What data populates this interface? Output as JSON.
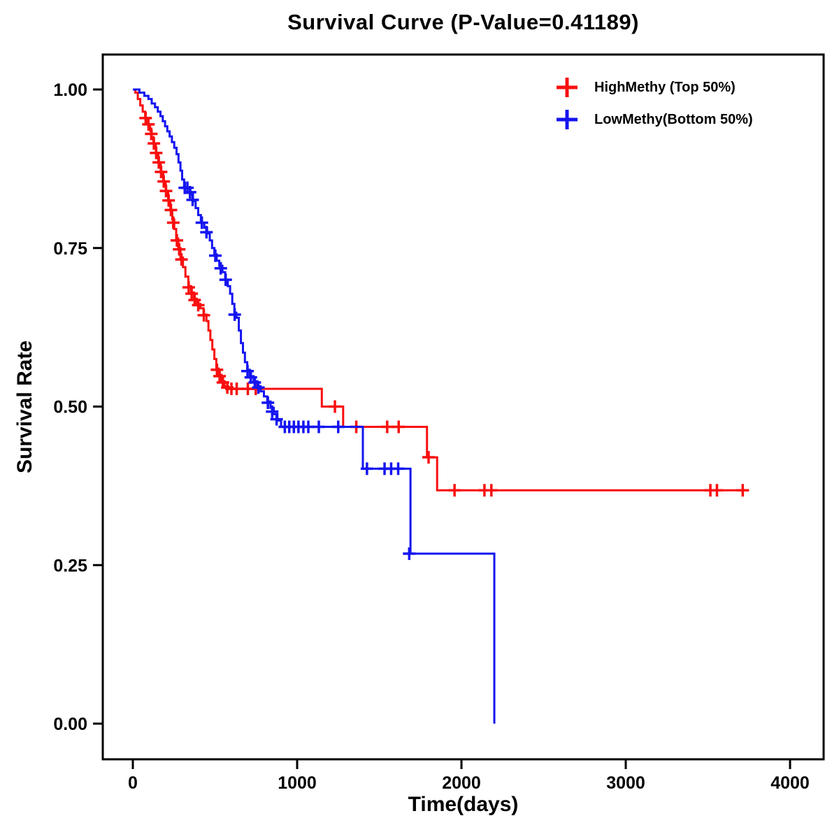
{
  "title": "Survival Curve (P-Value=0.41189)",
  "p_value": "0.41189",
  "chart_data": {
    "type": "line",
    "subtype": "kaplan-meier-step",
    "title": "Survival Curve (P-Value=0.41189)",
    "xlabel": "Time(days)",
    "ylabel": "Survival Rate",
    "xlim": [
      0,
      4000
    ],
    "ylim": [
      0.0,
      1.0
    ],
    "grid": false,
    "legend_position": "top-right-inside",
    "xticks": [
      {
        "v": 0,
        "label": "0"
      },
      {
        "v": 1000,
        "label": "1000"
      },
      {
        "v": 2000,
        "label": "2000"
      },
      {
        "v": 3000,
        "label": "3000"
      },
      {
        "v": 4000,
        "label": "4000"
      }
    ],
    "yticks": [
      {
        "v": 0.0,
        "label": "0.00"
      },
      {
        "v": 0.25,
        "label": "0.25"
      },
      {
        "v": 0.5,
        "label": "0.50"
      },
      {
        "v": 0.75,
        "label": "0.75"
      },
      {
        "v": 1.0,
        "label": "1.00"
      }
    ],
    "series": [
      {
        "name": "HighMethy (Top 50%)",
        "color": "#f90f0f",
        "steps": [
          [
            0,
            1.0
          ],
          [
            15,
            0.995
          ],
          [
            30,
            0.985
          ],
          [
            45,
            0.975
          ],
          [
            60,
            0.965
          ],
          [
            75,
            0.955
          ],
          [
            90,
            0.945
          ],
          [
            105,
            0.935
          ],
          [
            115,
            0.925
          ],
          [
            125,
            0.915
          ],
          [
            140,
            0.9
          ],
          [
            155,
            0.885
          ],
          [
            170,
            0.87
          ],
          [
            185,
            0.855
          ],
          [
            200,
            0.84
          ],
          [
            215,
            0.825
          ],
          [
            228,
            0.81
          ],
          [
            240,
            0.795
          ],
          [
            252,
            0.78
          ],
          [
            264,
            0.765
          ],
          [
            276,
            0.75
          ],
          [
            290,
            0.735
          ],
          [
            305,
            0.72
          ],
          [
            320,
            0.705
          ],
          [
            338,
            0.69
          ],
          [
            355,
            0.68
          ],
          [
            372,
            0.67
          ],
          [
            390,
            0.662
          ],
          [
            410,
            0.655
          ],
          [
            430,
            0.645
          ],
          [
            448,
            0.635
          ],
          [
            460,
            0.62
          ],
          [
            472,
            0.605
          ],
          [
            484,
            0.59
          ],
          [
            496,
            0.575
          ],
          [
            508,
            0.56
          ],
          [
            522,
            0.55
          ],
          [
            540,
            0.54
          ],
          [
            558,
            0.532
          ],
          [
            580,
            0.528
          ],
          [
            1150,
            0.5
          ],
          [
            1280,
            0.468
          ],
          [
            1790,
            0.42
          ],
          [
            1852,
            0.368
          ],
          [
            3720,
            0.368
          ]
        ],
        "censors": [
          [
            78,
            0.955
          ],
          [
            95,
            0.945
          ],
          [
            112,
            0.93
          ],
          [
            128,
            0.915
          ],
          [
            142,
            0.9
          ],
          [
            158,
            0.885
          ],
          [
            172,
            0.87
          ],
          [
            188,
            0.855
          ],
          [
            202,
            0.84
          ],
          [
            218,
            0.825
          ],
          [
            232,
            0.81
          ],
          [
            246,
            0.79
          ],
          [
            268,
            0.762
          ],
          [
            282,
            0.748
          ],
          [
            296,
            0.732
          ],
          [
            340,
            0.688
          ],
          [
            358,
            0.678
          ],
          [
            376,
            0.668
          ],
          [
            398,
            0.66
          ],
          [
            432,
            0.644
          ],
          [
            512,
            0.558
          ],
          [
            528,
            0.548
          ],
          [
            548,
            0.538
          ],
          [
            575,
            0.53
          ],
          [
            600,
            0.528
          ],
          [
            632,
            0.528
          ],
          [
            700,
            0.528
          ],
          [
            748,
            0.528
          ],
          [
            1230,
            0.5
          ],
          [
            1360,
            0.468
          ],
          [
            1548,
            0.468
          ],
          [
            1618,
            0.468
          ],
          [
            1800,
            0.42
          ],
          [
            1958,
            0.368
          ],
          [
            2140,
            0.368
          ],
          [
            2182,
            0.368
          ],
          [
            3515,
            0.368
          ],
          [
            3555,
            0.368
          ],
          [
            3712,
            0.368
          ]
        ]
      },
      {
        "name": "LowMethy(Bottom 50%)",
        "color": "#1414f0",
        "steps": [
          [
            0,
            1.0
          ],
          [
            40,
            0.995
          ],
          [
            70,
            0.99
          ],
          [
            95,
            0.985
          ],
          [
            115,
            0.978
          ],
          [
            135,
            0.972
          ],
          [
            152,
            0.965
          ],
          [
            168,
            0.958
          ],
          [
            182,
            0.95
          ],
          [
            196,
            0.942
          ],
          [
            210,
            0.934
          ],
          [
            224,
            0.926
          ],
          [
            238,
            0.917
          ],
          [
            252,
            0.908
          ],
          [
            266,
            0.898
          ],
          [
            278,
            0.885
          ],
          [
            290,
            0.872
          ],
          [
            300,
            0.858
          ],
          [
            312,
            0.845
          ],
          [
            350,
            0.835
          ],
          [
            366,
            0.824
          ],
          [
            382,
            0.813
          ],
          [
            398,
            0.802
          ],
          [
            414,
            0.79
          ],
          [
            435,
            0.782
          ],
          [
            452,
            0.773
          ],
          [
            468,
            0.762
          ],
          [
            482,
            0.75
          ],
          [
            496,
            0.74
          ],
          [
            510,
            0.73
          ],
          [
            526,
            0.722
          ],
          [
            545,
            0.712
          ],
          [
            562,
            0.7
          ],
          [
            578,
            0.69
          ],
          [
            592,
            0.678
          ],
          [
            605,
            0.662
          ],
          [
            618,
            0.648
          ],
          [
            630,
            0.64
          ],
          [
            645,
            0.62
          ],
          [
            658,
            0.6
          ],
          [
            670,
            0.585
          ],
          [
            682,
            0.57
          ],
          [
            696,
            0.558
          ],
          [
            712,
            0.548
          ],
          [
            735,
            0.54
          ],
          [
            758,
            0.532
          ],
          [
            778,
            0.524
          ],
          [
            798,
            0.516
          ],
          [
            818,
            0.508
          ],
          [
            838,
            0.498
          ],
          [
            858,
            0.488
          ],
          [
            880,
            0.478
          ],
          [
            902,
            0.468
          ],
          [
            1400,
            0.402
          ],
          [
            1690,
            0.268
          ],
          [
            2200,
            0.0
          ]
        ],
        "censors": [
          [
            316,
            0.845
          ],
          [
            332,
            0.845
          ],
          [
            348,
            0.838
          ],
          [
            364,
            0.826
          ],
          [
            420,
            0.79
          ],
          [
            448,
            0.775
          ],
          [
            502,
            0.738
          ],
          [
            535,
            0.718
          ],
          [
            565,
            0.7
          ],
          [
            620,
            0.645
          ],
          [
            698,
            0.556
          ],
          [
            718,
            0.546
          ],
          [
            742,
            0.538
          ],
          [
            764,
            0.53
          ],
          [
            822,
            0.506
          ],
          [
            848,
            0.492
          ],
          [
            875,
            0.48
          ],
          [
            925,
            0.468
          ],
          [
            952,
            0.468
          ],
          [
            980,
            0.468
          ],
          [
            1008,
            0.468
          ],
          [
            1038,
            0.468
          ],
          [
            1068,
            0.468
          ],
          [
            1132,
            0.468
          ],
          [
            1250,
            0.468
          ],
          [
            1425,
            0.402
          ],
          [
            1532,
            0.402
          ],
          [
            1572,
            0.402
          ],
          [
            1615,
            0.402
          ],
          [
            1682,
            0.268
          ]
        ]
      }
    ]
  }
}
